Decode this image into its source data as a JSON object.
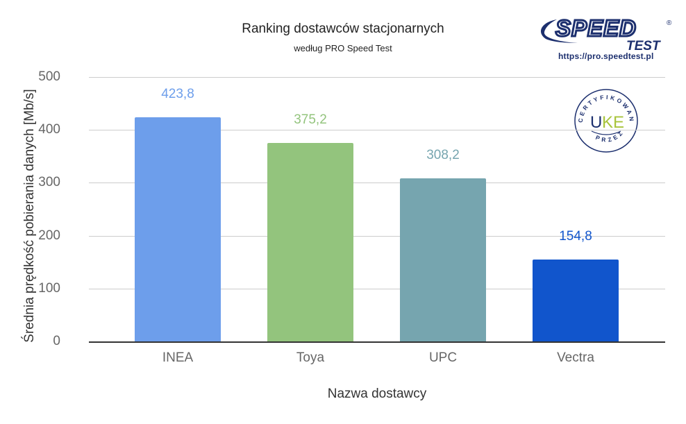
{
  "header": {
    "title": "Ranking dostawców stacjonarnych",
    "subtitle": "według PRO Speed Test"
  },
  "logo": {
    "brand_top": "SPEED",
    "brand_bottom": "TEST",
    "registered": "®",
    "url": "https://pro.speedtest.pl",
    "color": "#1c2f6e"
  },
  "badge": {
    "top_text": "CERTYFIKOWANE",
    "bottom_text": "PRZEZ",
    "logo_left": "U",
    "logo_right": "KE",
    "ring_color": "#1c2f6e",
    "accent_color": "#a8c43c"
  },
  "chart_data": {
    "type": "bar",
    "title": "Ranking dostawców stacjonarnych",
    "subtitle": "według PRO Speed Test",
    "xlabel": "Nazwa dostawcy",
    "ylabel": "Średnia prędkość pobierania danych [Mb/s]",
    "categories": [
      "INEA",
      "Toya",
      "UPC",
      "Vectra"
    ],
    "values": [
      423.8,
      375.2,
      308.2,
      154.8
    ],
    "value_labels": [
      "423,8",
      "375,2",
      "308,2",
      "154,8"
    ],
    "colors": [
      "#6d9eeb",
      "#93c47d",
      "#76a5af",
      "#1155cc"
    ],
    "ylim": [
      0,
      500
    ],
    "yticks": [
      "0",
      "100",
      "200",
      "300",
      "400",
      "500"
    ],
    "grid": true,
    "legend": "none"
  }
}
